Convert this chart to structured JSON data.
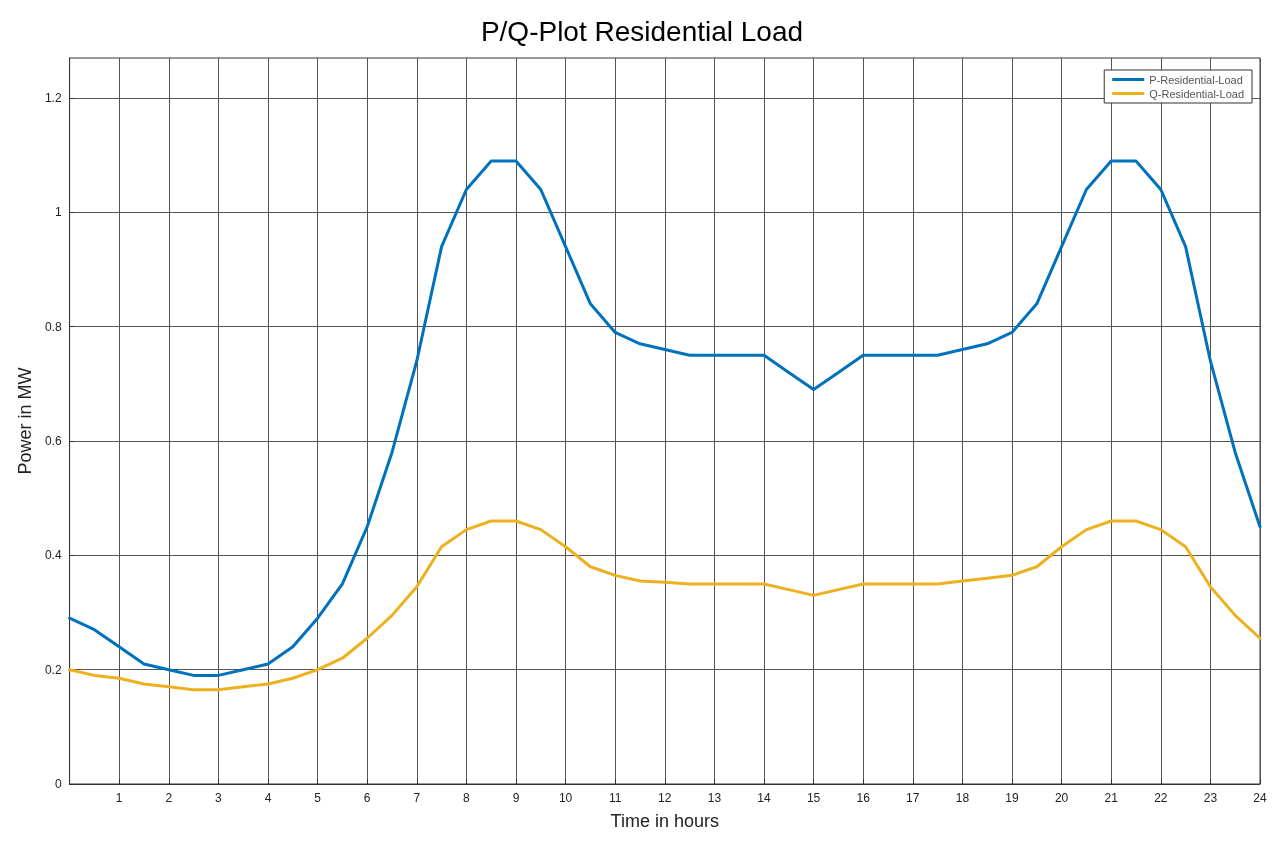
{
  "chart_data": {
    "type": "line",
    "title": "P/Q-Plot Residential Load",
    "xlabel": "Time in hours",
    "ylabel": "Power in MW",
    "x": [
      0,
      0.5,
      1,
      1.5,
      2,
      2.5,
      3,
      3.5,
      4,
      4.5,
      5,
      5.5,
      6,
      6.5,
      7,
      7.5,
      8,
      8.5,
      9,
      9.5,
      10,
      10.5,
      11,
      11.5,
      12,
      12.5,
      13,
      13.5,
      14,
      14.5,
      15,
      15.5,
      16,
      16.5,
      17,
      17.5,
      18,
      18.5,
      19,
      19.5,
      20,
      20.5,
      21,
      21.5,
      22,
      22.5,
      23,
      23.5,
      24
    ],
    "series": [
      {
        "name": "P-Residential-Load",
        "color": "#0072bd",
        "values": [
          0.29,
          0.27,
          0.24,
          0.21,
          0.2,
          0.19,
          0.19,
          0.2,
          0.21,
          0.24,
          0.29,
          0.35,
          0.45,
          0.58,
          0.74,
          0.94,
          1.04,
          1.09,
          1.09,
          1.04,
          0.94,
          0.84,
          0.79,
          0.77,
          0.76,
          0.75,
          0.75,
          0.75,
          0.75,
          0.72,
          0.69,
          0.72,
          0.75,
          0.75,
          0.75,
          0.75,
          0.76,
          0.77,
          0.79,
          0.84,
          0.94,
          1.04,
          1.09,
          1.09,
          1.04,
          0.94,
          0.74,
          0.58,
          0.45
        ]
      },
      {
        "name": "Q-Residential-Load",
        "color": "#edb120",
        "values": [
          0.2,
          0.19,
          0.185,
          0.175,
          0.17,
          0.165,
          0.165,
          0.17,
          0.175,
          0.185,
          0.2,
          0.22,
          0.255,
          0.295,
          0.345,
          0.415,
          0.445,
          0.46,
          0.46,
          0.445,
          0.415,
          0.38,
          0.365,
          0.355,
          0.353,
          0.35,
          0.35,
          0.35,
          0.35,
          0.34,
          0.33,
          0.34,
          0.35,
          0.35,
          0.35,
          0.35,
          0.355,
          0.36,
          0.365,
          0.38,
          0.415,
          0.445,
          0.46,
          0.46,
          0.445,
          0.415,
          0.345,
          0.295,
          0.255
        ]
      }
    ],
    "xlim": [
      0,
      24
    ],
    "xticks": [
      1,
      2,
      3,
      4,
      5,
      6,
      7,
      8,
      9,
      10,
      11,
      12,
      13,
      14,
      15,
      16,
      17,
      18,
      19,
      20,
      21,
      22,
      23,
      24
    ],
    "ylim": [
      0,
      1.27
    ],
    "yticks": [
      0,
      0.2,
      0.4,
      0.6,
      0.8,
      1,
      1.2
    ],
    "grid": true,
    "legend": "top right",
    "marker": "none",
    "line_style": "solid"
  }
}
